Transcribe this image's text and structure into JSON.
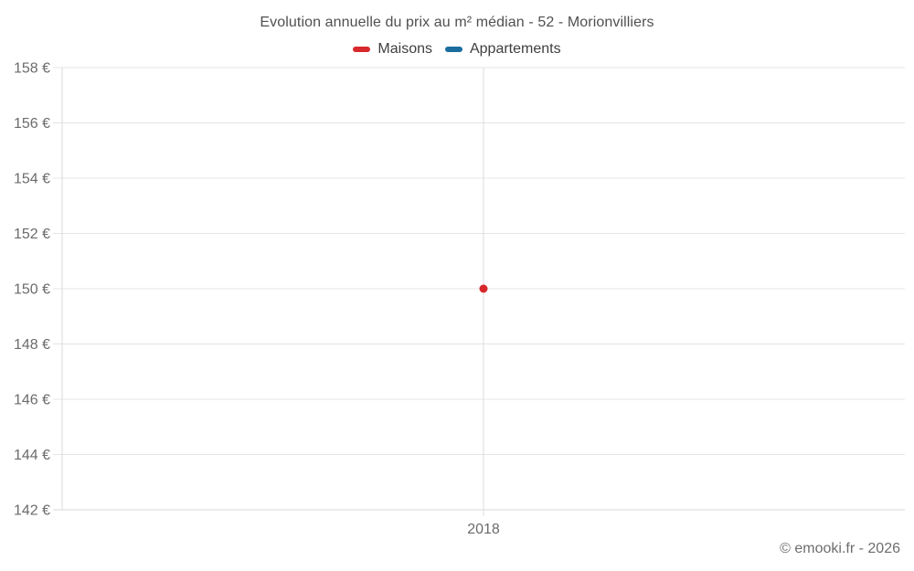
{
  "chart_data": {
    "type": "scatter",
    "title": "Evolution annuelle du prix au m² médian - 52 - Morionvilliers",
    "categories": [
      "2018"
    ],
    "series": [
      {
        "name": "Maisons",
        "color": "#d7282c",
        "points": [
          {
            "x": "2018",
            "y": 150
          }
        ]
      },
      {
        "name": "Appartements",
        "color": "#1b6d9e",
        "points": []
      }
    ],
    "xlabel": "",
    "ylabel": "",
    "ylim": [
      142,
      158
    ],
    "ytick_step": 2,
    "ytick_format": "{v} €",
    "ytick_labels": [
      "142 €",
      "144 €",
      "146 €",
      "148 €",
      "150 €",
      "152 €",
      "154 €",
      "156 €",
      "158 €"
    ],
    "xtick_labels": [
      "2018"
    ],
    "grid": true,
    "legend_position": "top"
  },
  "footer": {
    "copyright": "© emooki.fr - 2026"
  }
}
